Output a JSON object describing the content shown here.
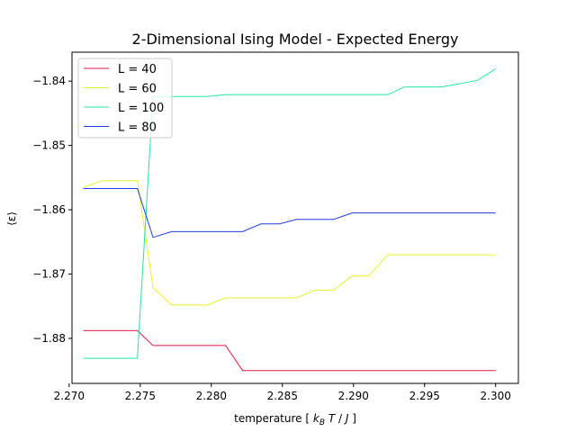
{
  "chart_data": {
    "type": "line",
    "title": "2-Dimensional Ising Model - Expected Energy",
    "xlabel": "temperature [ k_B T / J ]",
    "ylabel": "⟨ε⟩",
    "xlim": [
      2.2702,
      2.3016
    ],
    "ylim": [
      -1.887,
      -1.8355
    ],
    "xticks": [
      2.27,
      2.275,
      2.28,
      2.285,
      2.29,
      2.295,
      2.3
    ],
    "xtick_labels": [
      "2.270",
      "2.275",
      "2.280",
      "2.285",
      "2.290",
      "2.295",
      "2.300"
    ],
    "yticks": [
      -1.88,
      -1.87,
      -1.86,
      -1.85,
      -1.84
    ],
    "ytick_labels": [
      "−1.88",
      "−1.87",
      "−1.86",
      "−1.85",
      "−1.84"
    ],
    "grid": false,
    "legend_position": "upper-left",
    "series": [
      {
        "name": "L = 40",
        "color": "#e6194b",
        "x": [
          2.271,
          2.2748,
          2.2759,
          2.281,
          2.2822,
          2.29,
          2.3
        ],
        "y": [
          -1.8788,
          -1.8788,
          -1.8811,
          -1.8811,
          -1.885,
          -1.885,
          -1.885
        ]
      },
      {
        "name": "L = 60",
        "color": "#e6f028",
        "x": [
          2.271,
          2.2723,
          2.2748,
          2.2759,
          2.2772,
          2.2797,
          2.281,
          2.286,
          2.2873,
          2.2886,
          2.2899,
          2.2911,
          2.2924,
          2.2949,
          2.3
        ],
        "y": [
          -1.8565,
          -1.8555,
          -1.8555,
          -1.8721,
          -1.8748,
          -1.8748,
          -1.8737,
          -1.8737,
          -1.8725,
          -1.8725,
          -1.8703,
          -1.8703,
          -1.867,
          -1.867,
          -1.867
        ]
      },
      {
        "name": "L = 100",
        "color": "#24e6a0",
        "x": [
          2.271,
          2.2748,
          2.2759,
          2.2797,
          2.281,
          2.2924,
          2.2936,
          2.2962,
          2.2987,
          2.3
        ],
        "y": [
          -1.8831,
          -1.8831,
          -1.8424,
          -1.8424,
          -1.8421,
          -1.8421,
          -1.8409,
          -1.8409,
          -1.8399,
          -1.8381
        ]
      },
      {
        "name": "L = 80",
        "color": "#1e3cdc",
        "x": [
          2.271,
          2.2748,
          2.2759,
          2.2772,
          2.2822,
          2.2835,
          2.2848,
          2.286,
          2.2886,
          2.2899,
          2.3
        ],
        "y": [
          -1.8567,
          -1.8567,
          -1.8643,
          -1.8634,
          -1.8634,
          -1.8622,
          -1.8622,
          -1.8615,
          -1.8615,
          -1.8605,
          -1.8605
        ]
      }
    ]
  }
}
